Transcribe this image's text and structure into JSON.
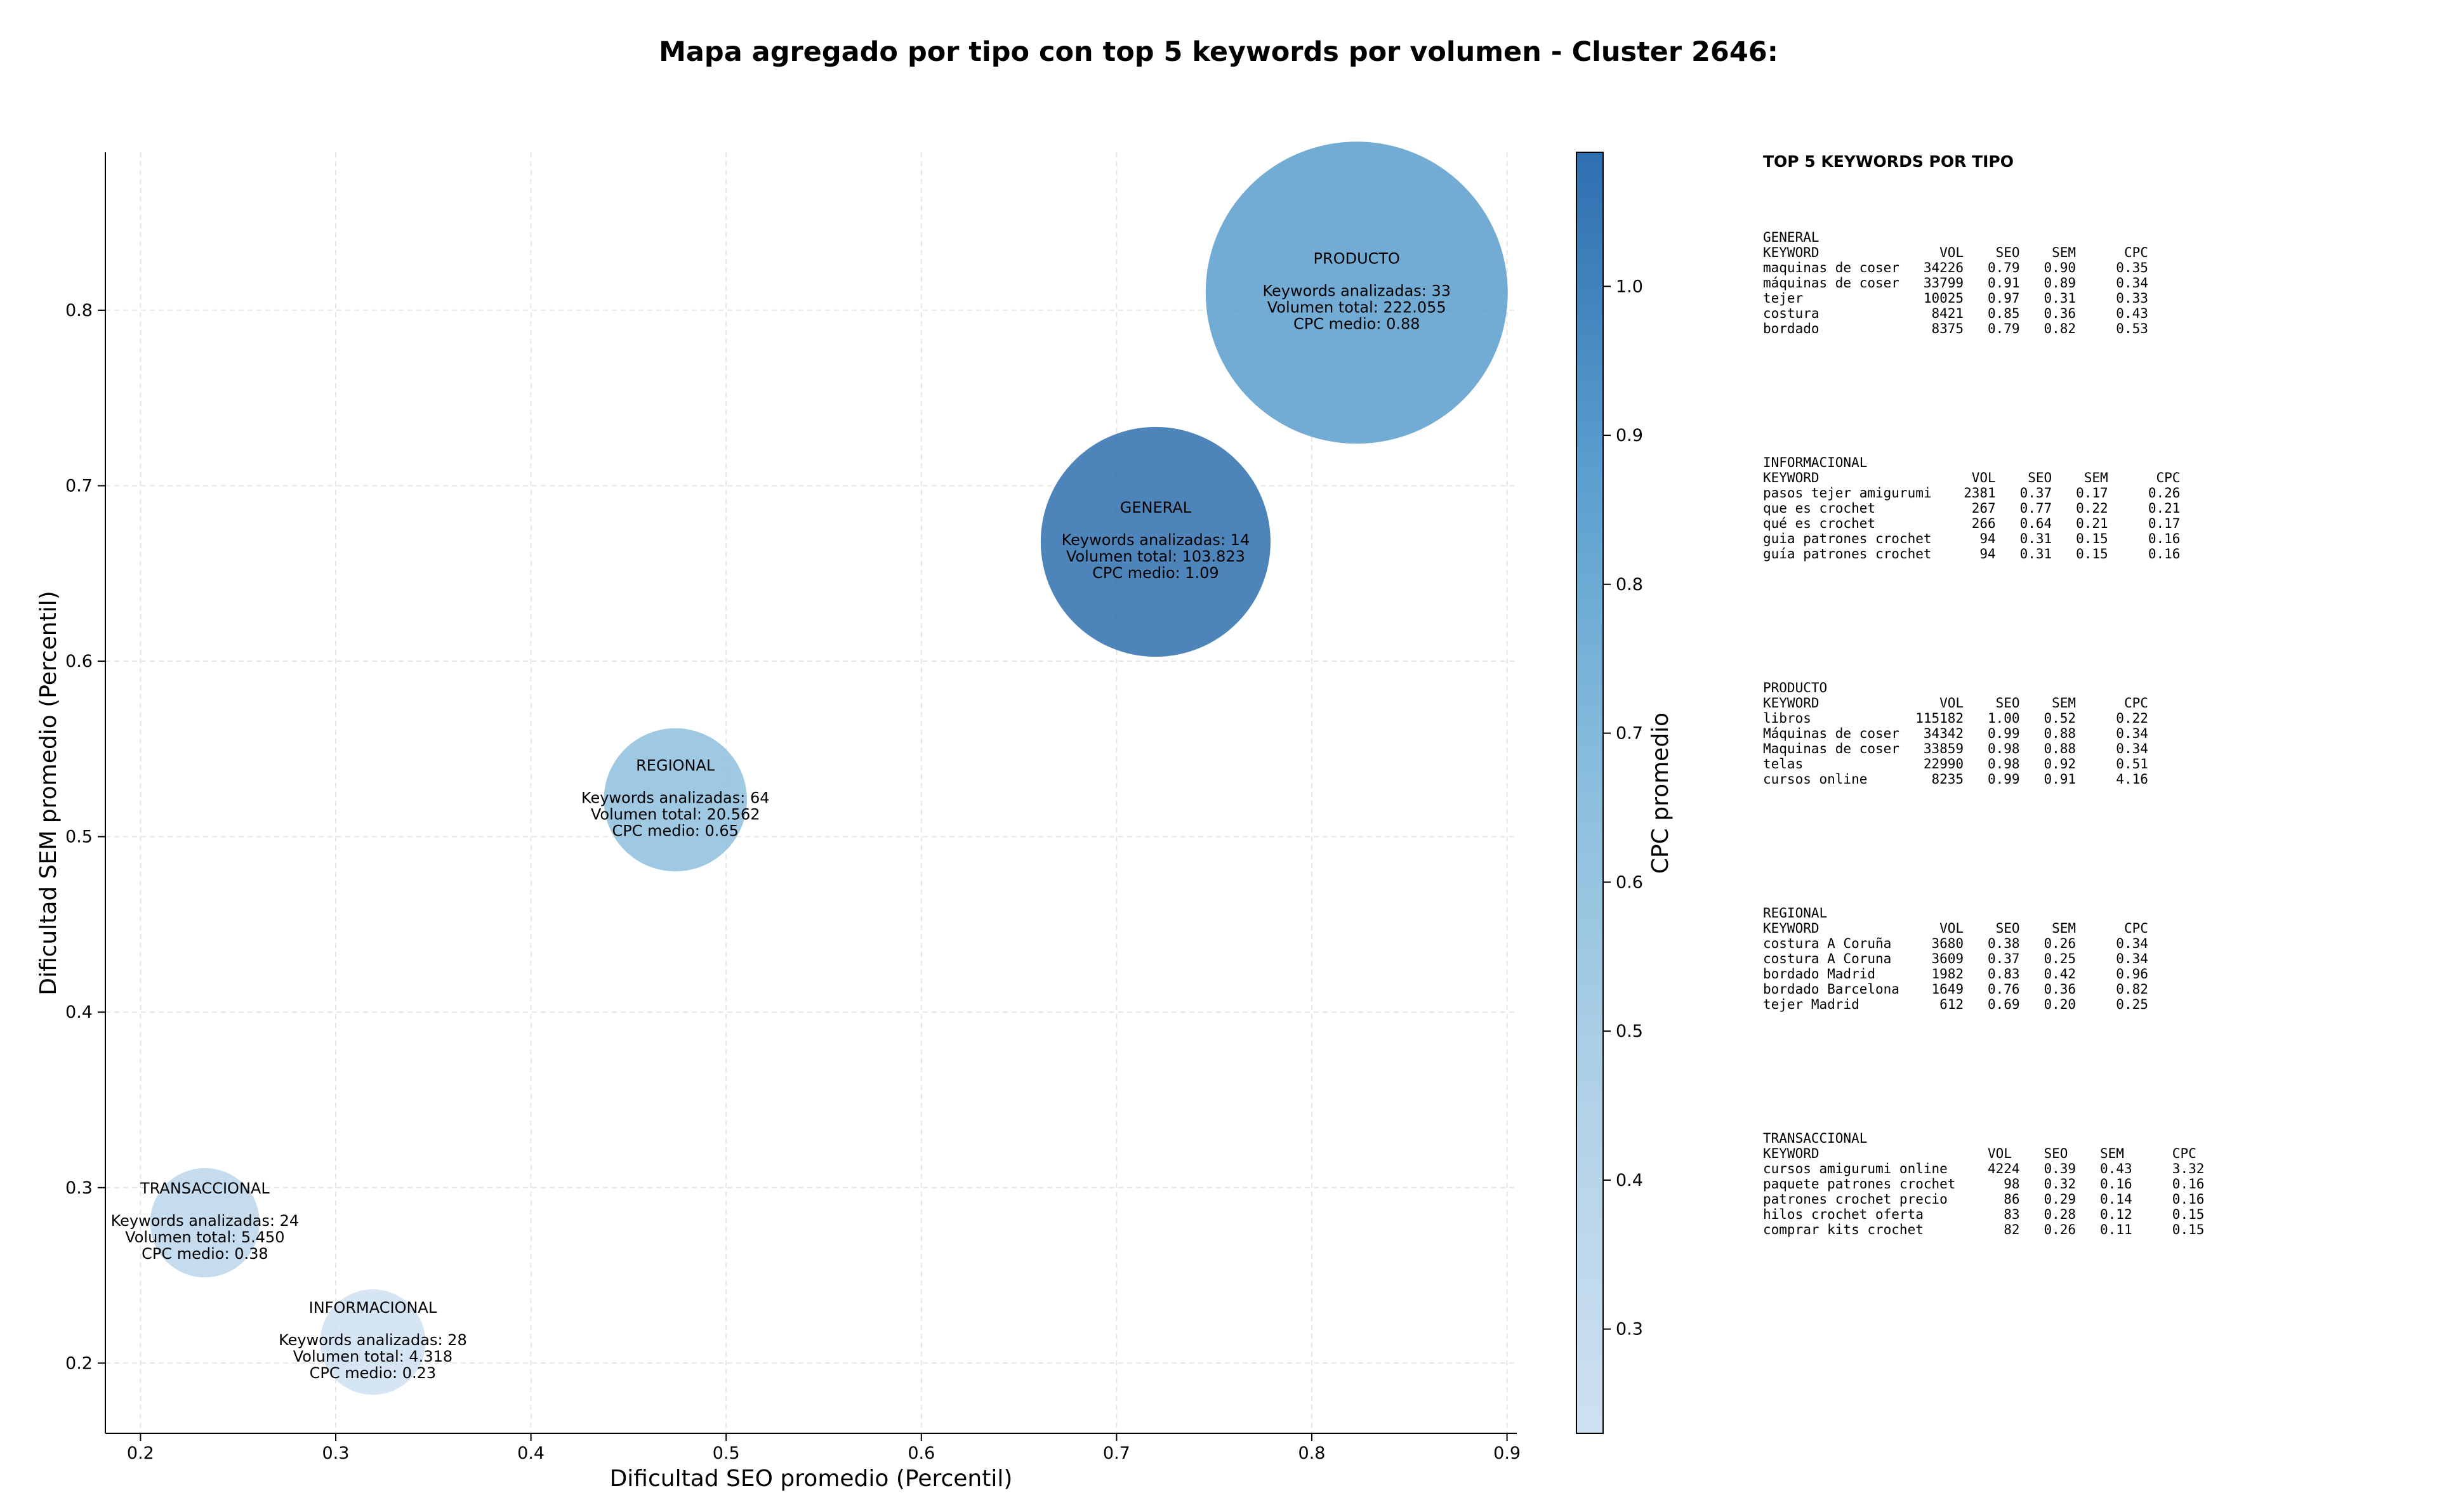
{
  "title": "Mapa agregado por tipo con top 5 keywords por volumen - Cluster 2646:",
  "chart_data": {
    "type": "scatter",
    "xlabel": "Dificultad SEO promedio (Percentil)",
    "ylabel": "Dificultad SEM promedio (Percentil)",
    "xlim": [
      0.182,
      0.905
    ],
    "ylim": [
      0.16,
      0.89
    ],
    "xticks": [
      "0.2",
      "0.3",
      "0.4",
      "0.5",
      "0.6",
      "0.7",
      "0.8",
      "0.9"
    ],
    "yticks": [
      "0.2",
      "0.3",
      "0.4",
      "0.5",
      "0.6",
      "0.7",
      "0.8"
    ],
    "grid": true,
    "colorbar": {
      "label": "CPC promedio",
      "range": [
        0.23,
        1.09
      ],
      "ticks": [
        "0.3",
        "0.4",
        "0.5",
        "0.6",
        "0.7",
        "0.8",
        "0.9",
        "1.0"
      ],
      "colormap": "Blues"
    },
    "points": [
      {
        "name": "PRODUCTO",
        "x": 0.823,
        "y": 0.81,
        "volume": 222055,
        "cpc": 0.88,
        "lines": [
          "Keywords analizadas: 33",
          "Volumen total: 222.055",
          "CPC medio: 0.88"
        ]
      },
      {
        "name": "GENERAL",
        "x": 0.72,
        "y": 0.668,
        "volume": 103823,
        "cpc": 1.09,
        "lines": [
          "Keywords analizadas: 14",
          "Volumen total: 103.823",
          "CPC medio: 1.09"
        ]
      },
      {
        "name": "REGIONAL",
        "x": 0.474,
        "y": 0.521,
        "volume": 20562,
        "cpc": 0.65,
        "lines": [
          "Keywords analizadas: 64",
          "Volumen total: 20.562",
          "CPC medio: 0.65"
        ]
      },
      {
        "name": "TRANSACCIONAL",
        "x": 0.233,
        "y": 0.28,
        "volume": 5450,
        "cpc": 0.38,
        "lines": [
          "Keywords analizadas: 24",
          "Volumen total: 5.450",
          "CPC medio: 0.38"
        ]
      },
      {
        "name": "INFORMACIONAL",
        "x": 0.319,
        "y": 0.212,
        "volume": 4318,
        "cpc": 0.23,
        "lines": [
          "Keywords analizadas: 28",
          "Volumen total: 4.318",
          "CPC medio: 0.23"
        ]
      }
    ]
  },
  "side_panel": {
    "title": "TOP 5 KEYWORDS POR TIPO",
    "blocks": [
      {
        "name": "GENERAL",
        "header": "KEYWORD               VOL    SEO    SEM      CPC",
        "rows": [
          "maquinas de coser   34226   0.79   0.90     0.35",
          "máquinas de coser   33799   0.91   0.89     0.34",
          "tejer               10025   0.97   0.31     0.33",
          "costura              8421   0.85   0.36     0.43",
          "bordado              8375   0.79   0.82     0.53"
        ]
      },
      {
        "name": "INFORMACIONAL",
        "header": "KEYWORD                   VOL    SEO    SEM      CPC",
        "rows": [
          "pasos tejer amigurumi    2381   0.37   0.17     0.26",
          "que es crochet            267   0.77   0.22     0.21",
          "qué es crochet            266   0.64   0.21     0.17",
          "guia patrones crochet      94   0.31   0.15     0.16",
          "guía patrones crochet      94   0.31   0.15     0.16"
        ]
      },
      {
        "name": "PRODUCTO",
        "header": "KEYWORD               VOL    SEO    SEM      CPC",
        "rows": [
          "libros             115182   1.00   0.52     0.22",
          "Máquinas de coser   34342   0.99   0.88     0.34",
          "Maquinas de coser   33859   0.98   0.88     0.34",
          "telas               22990   0.98   0.92     0.51",
          "cursos online        8235   0.99   0.91     4.16"
        ]
      },
      {
        "name": "REGIONAL",
        "header": "KEYWORD               VOL    SEO    SEM      CPC",
        "rows": [
          "costura A Coruña     3680   0.38   0.26     0.34",
          "costura A Coruna     3609   0.37   0.25     0.34",
          "bordado Madrid       1982   0.83   0.42     0.96",
          "bordado Barcelona    1649   0.76   0.36     0.82",
          "tejer Madrid          612   0.69   0.20     0.25"
        ]
      },
      {
        "name": "TRANSACCIONAL",
        "header": "KEYWORD                     VOL    SEO    SEM      CPC",
        "rows": [
          "cursos amigurumi online     4224   0.39   0.43     3.32",
          "paquete patrones crochet      98   0.32   0.16     0.16",
          "patrones crochet precio       86   0.29   0.14     0.16",
          "hilos crochet oferta          83   0.28   0.12     0.15",
          "comprar kits crochet          82   0.26   0.11     0.15"
        ]
      }
    ]
  }
}
